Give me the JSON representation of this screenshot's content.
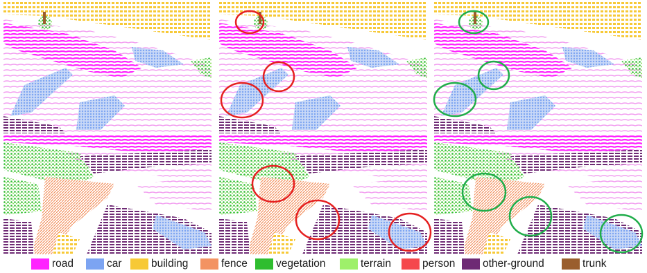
{
  "legend": [
    {
      "label": "road",
      "color": "#ff22ff"
    },
    {
      "label": "car",
      "color": "#7ca4f2"
    },
    {
      "label": "building",
      "color": "#f7c936"
    },
    {
      "label": "fence",
      "color": "#f39362"
    },
    {
      "label": "vegetation",
      "color": "#2fbd2f"
    },
    {
      "label": "terrain",
      "color": "#9ef06a"
    },
    {
      "label": "person",
      "color": "#f5484c"
    },
    {
      "label": "other-ground",
      "color": "#6e2a74"
    },
    {
      "label": "trunk",
      "color": "#9a5e2d"
    }
  ],
  "panels": {
    "columns": 3,
    "rows": 2,
    "highlight_colors": {
      "column_2": "#e52020",
      "column_3": "#20ad4a"
    }
  }
}
